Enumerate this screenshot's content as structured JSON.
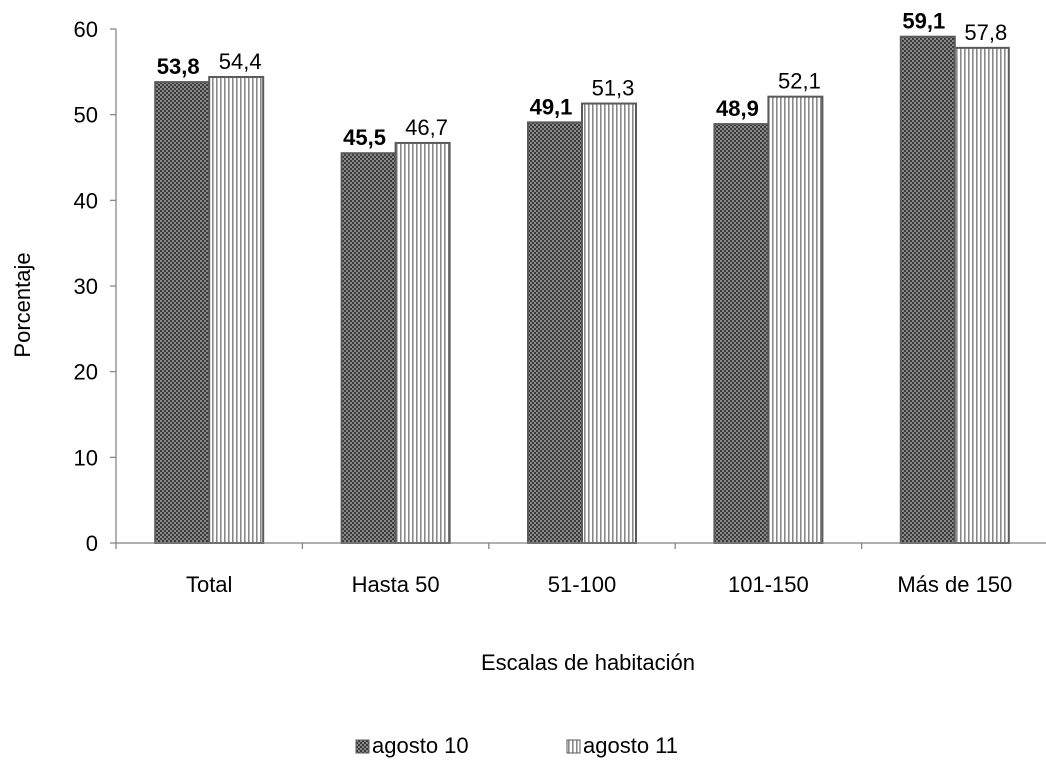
{
  "chart_data": {
    "type": "bar",
    "categories": [
      "Total",
      "Hasta 50",
      "51-100",
      "101-150",
      "Más de 150"
    ],
    "series": [
      {
        "name": "agosto 10",
        "values": [
          53.8,
          45.5,
          49.1,
          48.9,
          59.1
        ],
        "labels": [
          "53,8",
          "45,5",
          "49,1",
          "48,9",
          "59,1"
        ],
        "label_style": "bold",
        "pattern": "dark-dots"
      },
      {
        "name": "agosto 11",
        "values": [
          54.4,
          46.7,
          51.3,
          52.1,
          57.8
        ],
        "labels": [
          "54,4",
          "46,7",
          "51,3",
          "52,1",
          "57,8"
        ],
        "label_style": "normal",
        "pattern": "vertical-stripes"
      }
    ],
    "xlabel": "Escalas de habitación",
    "ylabel": "Porcentaje",
    "ylim": [
      0,
      60
    ],
    "yticks": [
      0,
      10,
      20,
      30,
      40,
      50,
      60
    ],
    "grid": false,
    "legend_position": "bottom",
    "colors": {
      "bar_stroke": "#5a5a5a",
      "dots_bg": "#3a3a3a",
      "dots_fg": "#8a8a8a",
      "stripes_bg": "#ffffff",
      "stripes_fg": "#8a8a8a",
      "axis": "#7f7f7f"
    }
  }
}
